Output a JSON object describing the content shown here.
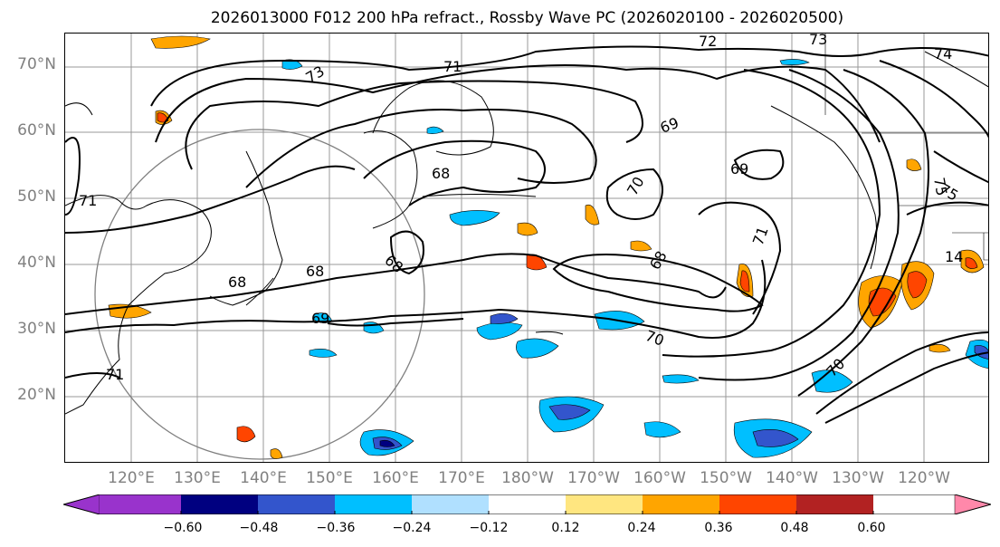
{
  "title": "2026013000 F012 200 hPa refract., Rossby Wave PC (2026020100 - 2026020500)",
  "lat_labels": [
    "70°N",
    "60°N",
    "50°N",
    "40°N",
    "30°N",
    "20°N"
  ],
  "lon_labels": [
    "120°E",
    "130°E",
    "140°E",
    "150°E",
    "160°E",
    "170°E",
    "180°W",
    "170°W",
    "160°W",
    "150°W",
    "140°W",
    "130°W",
    "120°W"
  ],
  "colorbar": {
    "colors": [
      "#9933cc",
      "#000080",
      "#3355cc",
      "#00bfff",
      "#b0e0ff",
      "#ffffff",
      "#ffe680",
      "#ffa500",
      "#ff4500",
      "#b22222",
      "#ff88aa"
    ],
    "tick_labels": [
      "−0.60",
      "−0.48",
      "−0.36",
      "−0.24",
      "−0.12",
      "0.12",
      "0.24",
      "0.36",
      "0.48",
      "0.60"
    ]
  },
  "contour_labels": [
    "72",
    "73",
    "71",
    "73",
    "74",
    "69",
    "69",
    "68",
    "68",
    "68",
    "68",
    "69",
    "70",
    "70",
    "71",
    "68",
    "71",
    "75",
    "75",
    "14",
    "69",
    "70",
    "71"
  ]
}
